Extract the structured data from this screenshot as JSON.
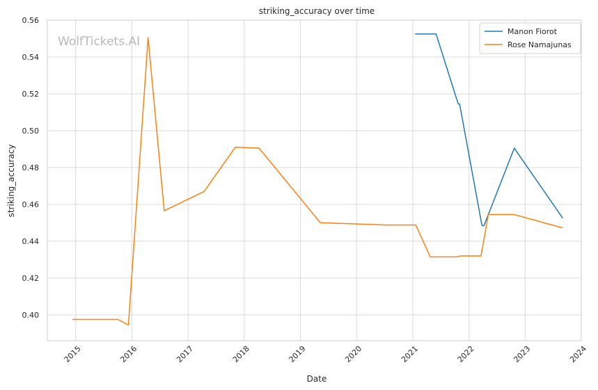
{
  "chart_data": {
    "type": "line",
    "title": "striking_accuracy over time",
    "xlabel": "Date",
    "ylabel": "striking_accuracy",
    "watermark": "WolfTickets.AI",
    "grid": true,
    "legend_position": "top-right",
    "xlim": [
      "2014-07-01",
      "2024-01-01"
    ],
    "ylim": [
      0.386,
      0.56
    ],
    "x_ticks": [
      "2015",
      "2016",
      "2017",
      "2018",
      "2019",
      "2020",
      "2021",
      "2022",
      "2023",
      "2024"
    ],
    "y_ticks": [
      "0.40",
      "0.42",
      "0.44",
      "0.46",
      "0.48",
      "0.50",
      "0.52",
      "0.54",
      "0.56"
    ],
    "series": [
      {
        "name": "Manon Fiorot",
        "color": "#1f77b4",
        "points": [
          [
            "2021-01-16",
            0.5525
          ],
          [
            "2021-06-01",
            0.5525
          ],
          [
            "2021-10-23",
            0.5145
          ],
          [
            "2021-11-01",
            0.5145
          ],
          [
            "2022-03-26",
            0.4485
          ],
          [
            "2022-04-09",
            0.4485
          ],
          [
            "2022-10-22",
            0.4905
          ],
          [
            "2023-09-02",
            0.4525
          ]
        ]
      },
      {
        "name": "Rose Namajunas",
        "color": "#ff7f0e",
        "points": [
          [
            "2014-12-12",
            0.3975
          ],
          [
            "2015-10-03",
            0.3975
          ],
          [
            "2015-12-10",
            0.3945
          ],
          [
            "2016-04-16",
            0.5505
          ],
          [
            "2016-07-30",
            0.4565
          ],
          [
            "2017-04-15",
            0.467
          ],
          [
            "2017-11-04",
            0.491
          ],
          [
            "2018-04-07",
            0.4905
          ],
          [
            "2019-05-11",
            0.45
          ],
          [
            "2020-07-11",
            0.4488
          ],
          [
            "2021-01-20",
            0.4488
          ],
          [
            "2021-04-24",
            0.4315
          ],
          [
            "2021-10-20",
            0.4315
          ],
          [
            "2021-11-06",
            0.432
          ],
          [
            "2022-03-20",
            0.432
          ],
          [
            "2022-05-07",
            0.4545
          ],
          [
            "2022-10-20",
            0.4545
          ],
          [
            "2023-09-02",
            0.4472
          ]
        ]
      }
    ]
  }
}
